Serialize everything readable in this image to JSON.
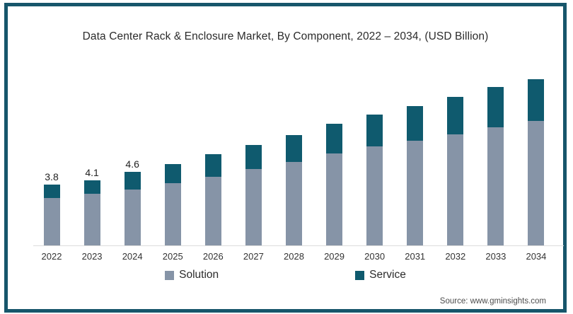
{
  "title": "Data Center Rack & Enclosure Market, By Component, 2022 – 2034, (USD Billion)",
  "source_text": "Source: www.gminsights.com",
  "colors": {
    "frame_border": "#17566b",
    "solution": "#8694a7",
    "service": "#0f5a6e",
    "baseline": "#dcdcdc"
  },
  "legend": [
    {
      "label": "Solution",
      "color": "#8694a7"
    },
    {
      "label": "Service",
      "color": "#0f5a6e"
    }
  ],
  "chart_data": {
    "type": "bar",
    "stacked": true,
    "title": "Data Center Rack & Enclosure Market, By Component, 2022 – 2034, (USD Billion)",
    "categories": [
      "2022",
      "2023",
      "2024",
      "2025",
      "2026",
      "2027",
      "2028",
      "2029",
      "2030",
      "2031",
      "2032",
      "2033",
      "2034"
    ],
    "series": [
      {
        "name": "Solution",
        "color": "#8694a7",
        "values": [
          2.95,
          3.25,
          3.5,
          3.9,
          4.3,
          4.8,
          5.2,
          5.75,
          6.2,
          6.55,
          6.95,
          7.4,
          7.8
        ]
      },
      {
        "name": "Service",
        "color": "#0f5a6e",
        "values": [
          0.85,
          0.85,
          1.1,
          1.2,
          1.4,
          1.5,
          1.7,
          1.85,
          2.0,
          2.15,
          2.35,
          2.5,
          2.6
        ]
      }
    ],
    "totals": [
      3.8,
      4.1,
      4.6,
      5.1,
      5.7,
      6.3,
      6.9,
      7.6,
      8.2,
      8.7,
      9.3,
      9.9,
      10.4
    ],
    "data_labels": [
      "3.8",
      "4.1",
      "4.6",
      "",
      "",
      "",
      "",
      "",
      "",
      "",
      "",
      "",
      ""
    ],
    "xlabel": "",
    "ylabel": "",
    "ylim": [
      0,
      11
    ],
    "grid": false,
    "legend_position": "bottom"
  }
}
